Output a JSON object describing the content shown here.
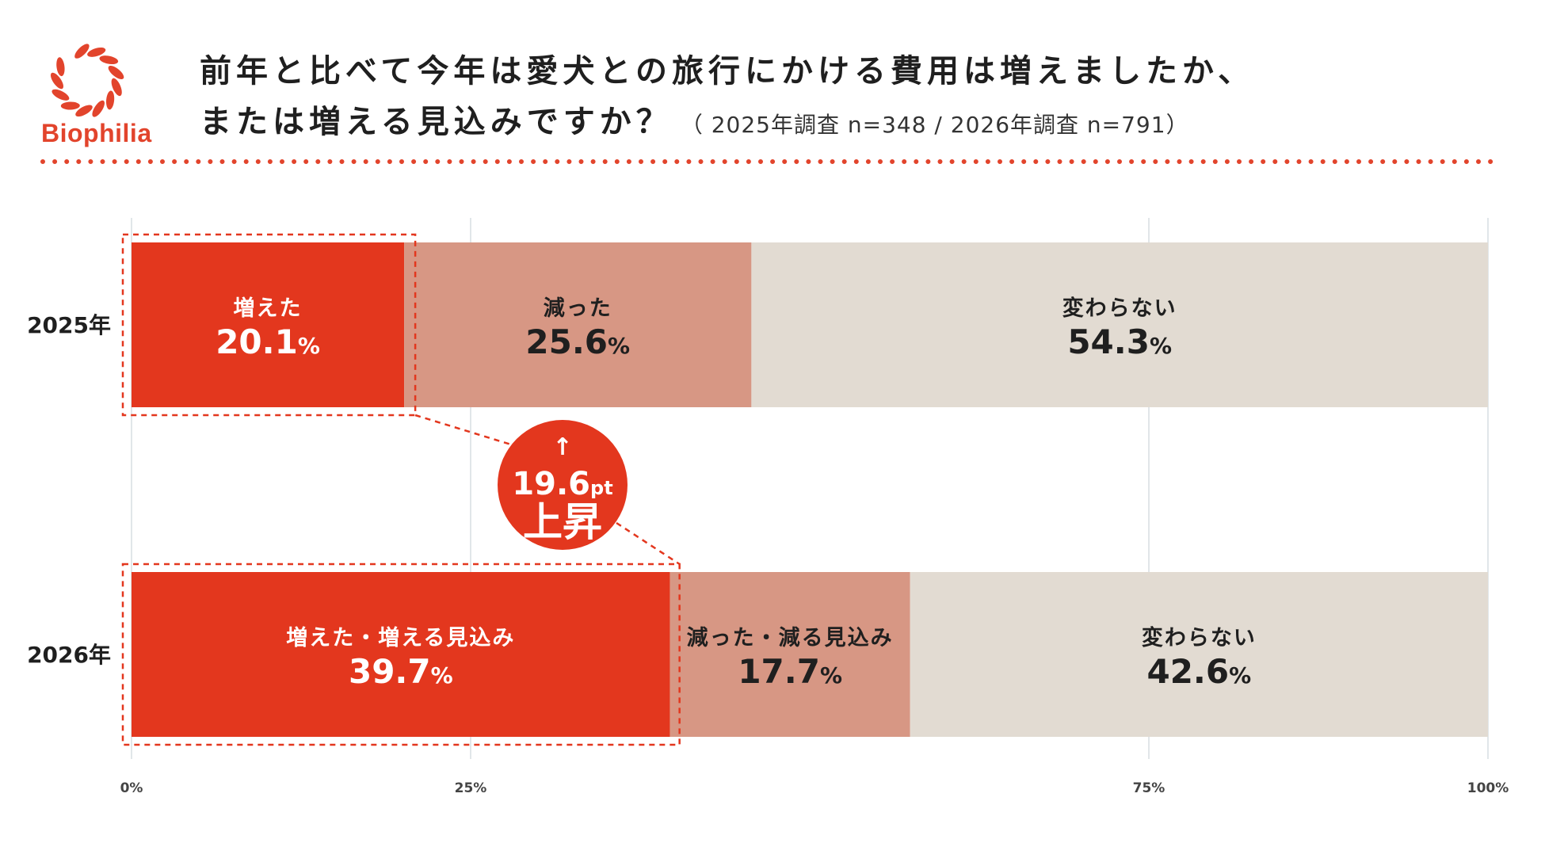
{
  "logo": {
    "brand": "Biophilia",
    "icon": "laurel-wreath-icon",
    "color": "#e2442c"
  },
  "title": {
    "line1": "前年と比べて今年は愛犬との旅行にかける費用は増えましたか、",
    "line2": "または増える見込みですか？",
    "sample_note": "（ 2025年調査 n=348 / 2026年調査 n=791）"
  },
  "chart_data": {
    "type": "bar",
    "orientation": "horizontal",
    "stacked": true,
    "xlim": [
      0,
      100
    ],
    "x_ticks": [
      "0%",
      "25%",
      "75%",
      "100%"
    ],
    "x_tick_values": [
      0,
      25,
      75,
      100
    ],
    "grid": true,
    "categories": [
      "2025年",
      "2026年"
    ],
    "rows": [
      {
        "label": "2025年",
        "segments": [
          {
            "name": "増えた",
            "value": 20.1,
            "display": "20.1",
            "color": "#e3371e",
            "text_color": "#ffffff"
          },
          {
            "name": "減った",
            "value": 25.6,
            "display": "25.6",
            "color": "#d79784",
            "text_color": "#1f1f1f"
          },
          {
            "name": "変わらない",
            "value": 54.3,
            "display": "54.3",
            "color": "#e2dbd2",
            "text_color": "#1f1f1f"
          }
        ]
      },
      {
        "label": "2026年",
        "segments": [
          {
            "name": "増えた・増える見込み",
            "value": 39.7,
            "display": "39.7",
            "color": "#e3371e",
            "text_color": "#ffffff"
          },
          {
            "name": "減った・減る見込み",
            "value": 17.7,
            "display": "17.7",
            "color": "#d79784",
            "text_color": "#1f1f1f"
          },
          {
            "name": "変わらない",
            "value": 42.6,
            "display": "42.6",
            "color": "#e2dbd2",
            "text_color": "#1f1f1f"
          }
        ]
      }
    ],
    "percent_sign": "%",
    "annotation": {
      "arrow": "↑",
      "value": "19.6",
      "unit": "pt",
      "text": "上昇",
      "color": "#e3371e"
    }
  }
}
